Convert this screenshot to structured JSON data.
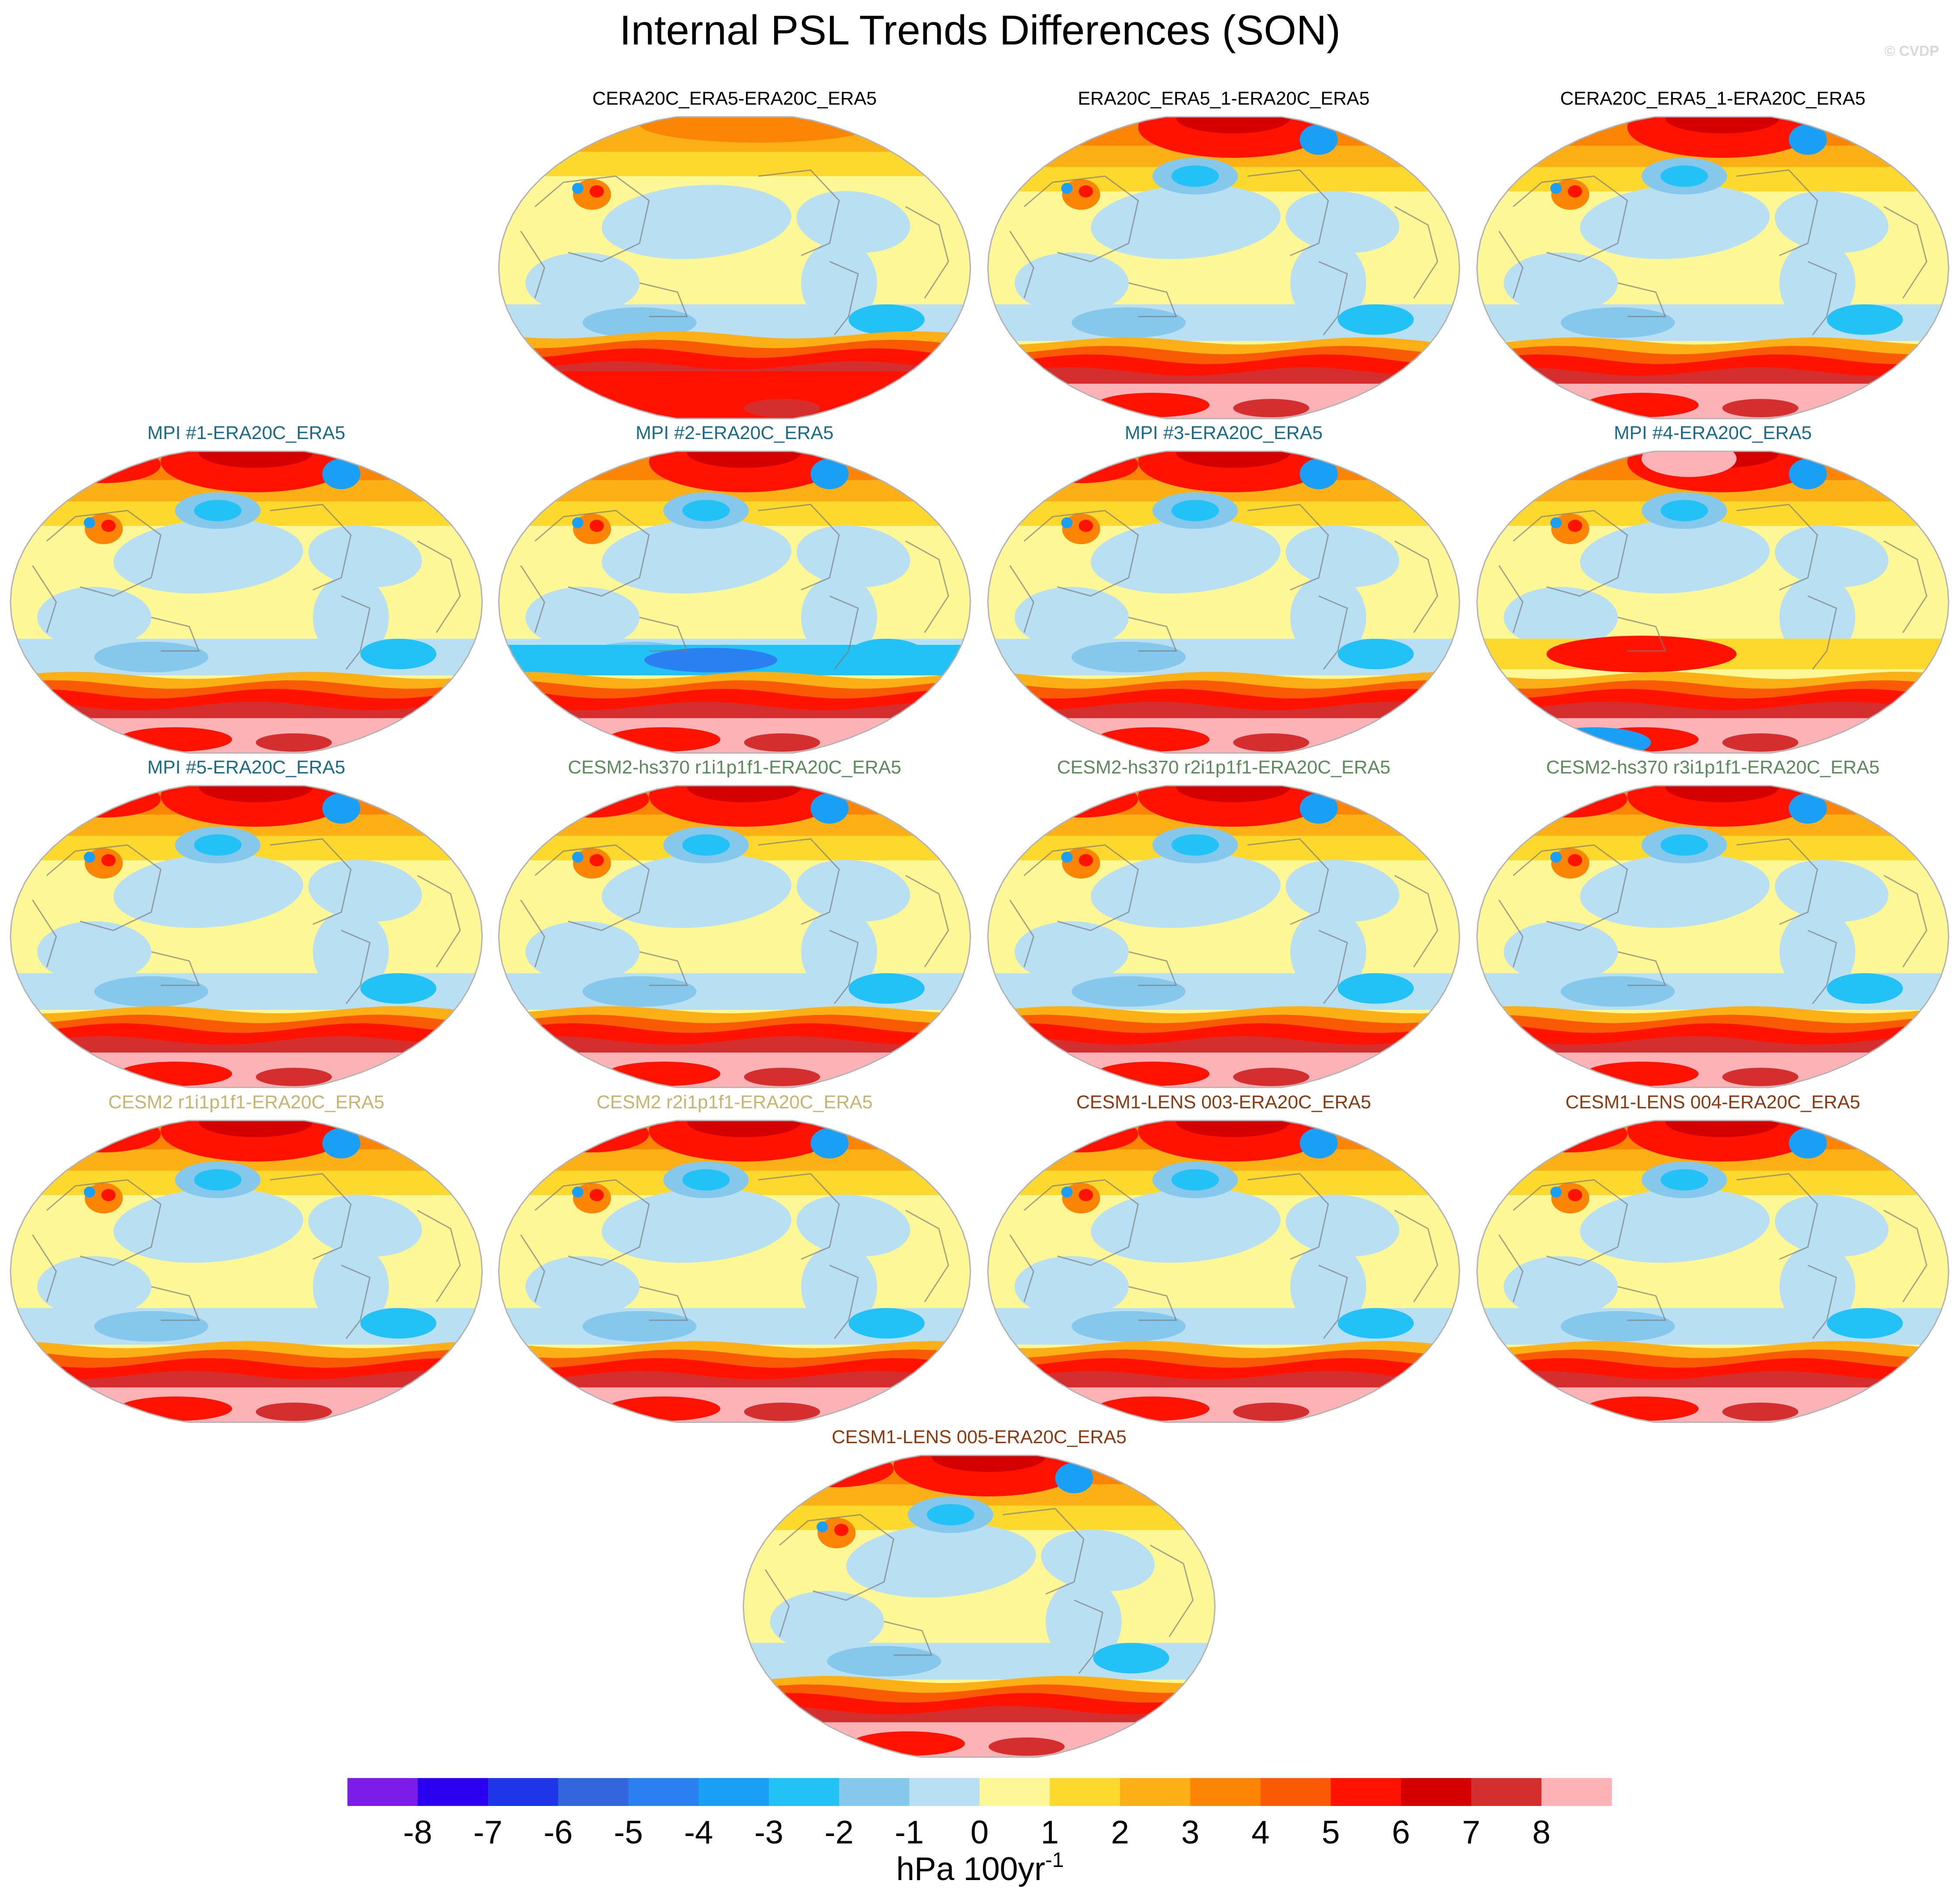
{
  "title": "Internal PSL Trends Differences (SON)",
  "credit": "© CVDP",
  "chart_data": {
    "type": "heatmap",
    "projection": "robinson",
    "colorbar": {
      "levels": [
        -8,
        -7,
        -6,
        -5,
        -4,
        -3,
        -2,
        -1,
        0,
        1,
        2,
        3,
        4,
        5,
        6,
        7,
        8
      ],
      "tick_labels": [
        "-8",
        "-7",
        "-6",
        "-5",
        "-4",
        "-3",
        "-2",
        "-1",
        "0",
        "1",
        "2",
        "3",
        "4",
        "5",
        "6",
        "7",
        "8"
      ],
      "colors": [
        "#7b1ce8",
        "#2b00f0",
        "#1f36e8",
        "#3366dd",
        "#2a80f0",
        "#1a9ff7",
        "#22c2f7",
        "#86c7ec",
        "#b8dff2",
        "#fdf795",
        "#fdd82d",
        "#fcb016",
        "#fc8505",
        "#fb5a05",
        "#ff1200",
        "#d40000",
        "#d42e2e",
        "#fdb2b6"
      ],
      "units": "hPa 100yr",
      "units_superscript": "-1"
    },
    "panels": [
      {
        "title": "CERA20C_ERA5-ERA20C_ERA5",
        "title_color": "#000000",
        "pattern": "cera"
      },
      {
        "title": "ERA20C_ERA5_1-ERA20C_ERA5",
        "title_color": "#000000",
        "pattern": "reana"
      },
      {
        "title": "CERA20C_ERA5_1-ERA20C_ERA5",
        "title_color": "#000000",
        "pattern": "reana"
      },
      {
        "title": "MPI #1-ERA20C_ERA5",
        "title_color": "#1a6b8a",
        "pattern": "model"
      },
      {
        "title": "MPI #2-ERA20C_ERA5",
        "title_color": "#1a6b8a",
        "pattern": "mpi2"
      },
      {
        "title": "MPI #3-ERA20C_ERA5",
        "title_color": "#1a6b8a",
        "pattern": "model"
      },
      {
        "title": "MPI #4-ERA20C_ERA5",
        "title_color": "#1a6b8a",
        "pattern": "mpi4"
      },
      {
        "title": "MPI #5-ERA20C_ERA5",
        "title_color": "#1a6b8a",
        "pattern": "model"
      },
      {
        "title": "CESM2-hs370 r1i1p1f1-ERA20C_ERA5",
        "title_color": "#5b8a5b",
        "pattern": "model"
      },
      {
        "title": "CESM2-hs370 r2i1p1f1-ERA20C_ERA5",
        "title_color": "#5b8a5b",
        "pattern": "model"
      },
      {
        "title": "CESM2-hs370 r3i1p1f1-ERA20C_ERA5",
        "title_color": "#5b8a5b",
        "pattern": "model"
      },
      {
        "title": "CESM2 r1i1p1f1-ERA20C_ERA5",
        "title_color": "#c8b46e",
        "pattern": "model"
      },
      {
        "title": "CESM2 r2i1p1f1-ERA20C_ERA5",
        "title_color": "#c8b46e",
        "pattern": "model"
      },
      {
        "title": "CESM1-LENS 003-ERA20C_ERA5",
        "title_color": "#8b3a0f",
        "pattern": "model"
      },
      {
        "title": "CESM1-LENS 004-ERA20C_ERA5",
        "title_color": "#8b3a0f",
        "pattern": "model"
      },
      {
        "title": "CESM1-LENS 005-ERA20C_ERA5",
        "title_color": "#8b3a0f",
        "pattern": "model"
      }
    ]
  }
}
